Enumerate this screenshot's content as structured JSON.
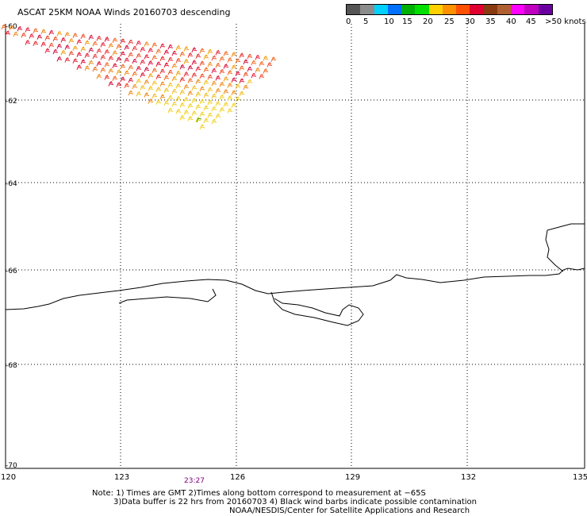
{
  "header": {
    "title": "ASCAT 25KM NOAA Winds 20160703 descending"
  },
  "legend": {
    "colors": [
      "#555555",
      "#8c8c8c",
      "#00d0ff",
      "#0070ff",
      "#00b000",
      "#00e000",
      "#ffd000",
      "#ff9000",
      "#ff5000",
      "#e00030",
      "#8a3a10",
      "#b06030",
      "#ff00ff",
      "#c000c0",
      "#6a00a0"
    ],
    "labels": [
      "0",
      "5",
      "10",
      "15",
      "20",
      "25",
      "30",
      "35",
      "40",
      "45",
      ">50 knots"
    ]
  },
  "map": {
    "lat_labels": [
      "-60",
      "-62",
      "-64",
      "-66",
      "-68",
      "-70"
    ],
    "lon_labels": [
      "120",
      "123",
      "126",
      "129",
      "132",
      "135"
    ],
    "time_label": "23:27"
  },
  "notes": {
    "line1": "Note: 1) Times are GMT 2)Times along bottom correspond to measurement at −65S",
    "line2": "3)Data buffer is 22 hrs from 20160703 4) Black wind barbs indicate possible contamination",
    "line3": "NOAA/NESDIS/Center for Satellite Applications and Research"
  }
}
